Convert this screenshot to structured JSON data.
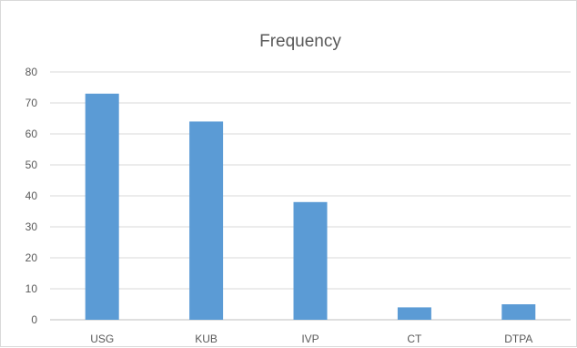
{
  "chart_data": {
    "type": "bar",
    "title": "Frequency",
    "categories": [
      "USG",
      "KUB",
      "IVP",
      "CT",
      "DTPA"
    ],
    "values": [
      73,
      64,
      38,
      4,
      5
    ],
    "xlabel": "",
    "ylabel": "",
    "ylim": [
      0,
      80
    ],
    "yticks": [
      0,
      10,
      20,
      30,
      40,
      50,
      60,
      70,
      80
    ],
    "grid": true,
    "legend": "none",
    "colors": {
      "bar": "#5b9bd5",
      "grid": "#d9d9d9",
      "text": "#595959"
    }
  }
}
